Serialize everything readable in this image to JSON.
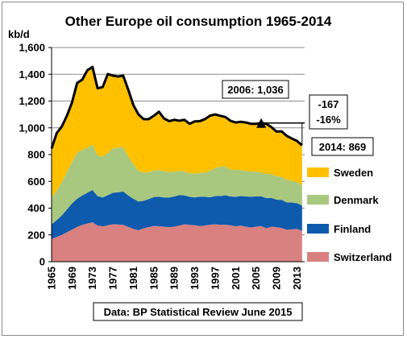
{
  "chart_data": {
    "type": "area",
    "title": "Other Europe oil consumption 1965-2014",
    "ylabel": "kb/d",
    "ylim": [
      0,
      1600
    ],
    "yticks": [
      0,
      200,
      400,
      600,
      800,
      1000,
      1200,
      1400,
      1600
    ],
    "ytick_labels": [
      "0",
      "200",
      "400",
      "600",
      "800",
      "1,000",
      "1,200",
      "1,400",
      "1,600"
    ],
    "x": [
      1965,
      1966,
      1967,
      1968,
      1969,
      1970,
      1971,
      1972,
      1973,
      1974,
      1975,
      1976,
      1977,
      1978,
      1979,
      1980,
      1981,
      1982,
      1983,
      1984,
      1985,
      1986,
      1987,
      1988,
      1989,
      1990,
      1991,
      1992,
      1993,
      1994,
      1995,
      1996,
      1997,
      1998,
      1999,
      2000,
      2001,
      2002,
      2003,
      2004,
      2005,
      2006,
      2007,
      2008,
      2009,
      2010,
      2011,
      2012,
      2013,
      2014
    ],
    "xtick_labels": [
      "1965",
      "1969",
      "1973",
      "1977",
      "1981",
      "1985",
      "1989",
      "1993",
      "1997",
      "2001",
      "2005",
      "2009",
      "2013"
    ],
    "grid": true,
    "legend_position": "right",
    "series": [
      {
        "name": "Switzerland",
        "color": "#d98080",
        "values": [
          170,
          185,
          200,
          220,
          240,
          260,
          275,
          285,
          295,
          270,
          265,
          272,
          280,
          278,
          275,
          260,
          245,
          235,
          250,
          258,
          268,
          265,
          262,
          258,
          262,
          270,
          280,
          275,
          272,
          266,
          270,
          276,
          280,
          275,
          276,
          272,
          265,
          270,
          262,
          256,
          262,
          266,
          250,
          262,
          258,
          252,
          238,
          242,
          245,
          230
        ]
      },
      {
        "name": "Finland",
        "color": "#0e5aac",
        "values": [
          110,
          125,
          145,
          170,
          195,
          210,
          220,
          230,
          240,
          220,
          215,
          225,
          235,
          240,
          250,
          235,
          225,
          215,
          205,
          210,
          215,
          220,
          218,
          222,
          225,
          228,
          215,
          210,
          208,
          220,
          215,
          205,
          210,
          215,
          220,
          215,
          220,
          220,
          225,
          230,
          225,
          222,
          225,
          215,
          205,
          210,
          205,
          200,
          192,
          190
        ]
      },
      {
        "name": "Denmark",
        "color": "#a8c880",
        "values": [
          200,
          220,
          250,
          280,
          310,
          345,
          340,
          335,
          340,
          305,
          305,
          315,
          330,
          335,
          330,
          290,
          260,
          230,
          210,
          200,
          200,
          200,
          195,
          190,
          185,
          180,
          180,
          175,
          178,
          180,
          180,
          200,
          210,
          220,
          215,
          200,
          200,
          195,
          190,
          188,
          185,
          180,
          180,
          178,
          175,
          172,
          168,
          163,
          158,
          150
        ]
      },
      {
        "name": "Sweden",
        "color": "#ffc000",
        "values": [
          365,
          430,
          415,
          420,
          445,
          520,
          525,
          580,
          580,
          500,
          520,
          590,
          545,
          530,
          535,
          500,
          440,
          420,
          400,
          397,
          407,
          435,
          395,
          380,
          388,
          375,
          385,
          370,
          390,
          384,
          400,
          410,
          400,
          380,
          370,
          365,
          355,
          360,
          363,
          356,
          358,
          368,
          375,
          350,
          334,
          340,
          329,
          315,
          307,
          299
        ]
      }
    ],
    "total_line": {
      "color": "#000000",
      "values": [
        845,
        960,
        1010,
        1090,
        1190,
        1335,
        1360,
        1430,
        1455,
        1295,
        1305,
        1402,
        1390,
        1383,
        1390,
        1285,
        1170,
        1100,
        1065,
        1065,
        1090,
        1120,
        1070,
        1050,
        1060,
        1053,
        1060,
        1030,
        1048,
        1050,
        1065,
        1091,
        1100,
        1090,
        1081,
        1052,
        1040,
        1045,
        1040,
        1030,
        1030,
        1036,
        1030,
        1005,
        972,
        974,
        940,
        920,
        902,
        869
      ]
    },
    "reference_line": {
      "value": 1036,
      "from_x": 2006,
      "to_x": 2014.5
    },
    "annotations": [
      {
        "text": "2006: 1,036"
      },
      {
        "text": "-167"
      },
      {
        "text": "-16%"
      },
      {
        "text": "2014: 869"
      }
    ],
    "source": "Data: BP Statistical Review June 2015"
  }
}
